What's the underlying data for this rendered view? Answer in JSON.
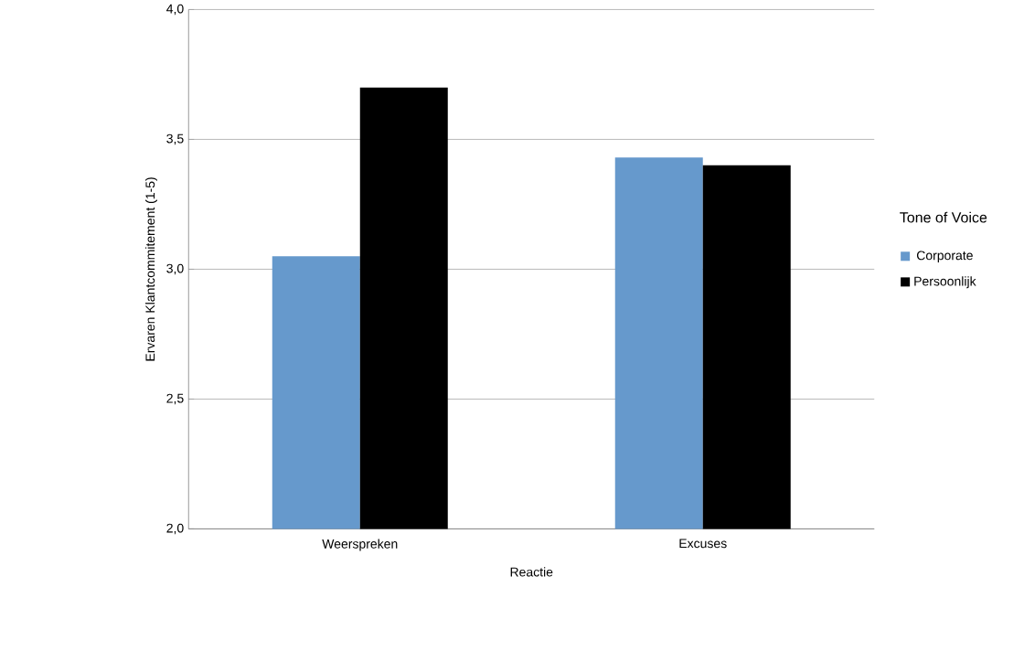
{
  "chart_data": {
    "type": "bar",
    "categories": [
      "Weerspreken",
      "Excuses"
    ],
    "xlabel": "Reactie",
    "ylabel": "Ervaren Klantcommitement (1-5)",
    "legend_title": "Tone of Voice",
    "series": [
      {
        "name": "Corporate",
        "color": "#6699cc",
        "values": [
          3.05,
          3.43
        ]
      },
      {
        "name": "Persoonlijk",
        "color": "#000000",
        "values": [
          3.7,
          3.4
        ]
      }
    ],
    "ylim": [
      2.0,
      4.0
    ],
    "yticks": [
      {
        "value": 2.0,
        "label": "2,0"
      },
      {
        "value": 2.5,
        "label": "2,5"
      },
      {
        "value": 3.0,
        "label": "3,0"
      },
      {
        "value": 3.5,
        "label": "3,5"
      },
      {
        "value": 4.0,
        "label": "4,0"
      }
    ],
    "grid": "y",
    "legend": "right"
  }
}
